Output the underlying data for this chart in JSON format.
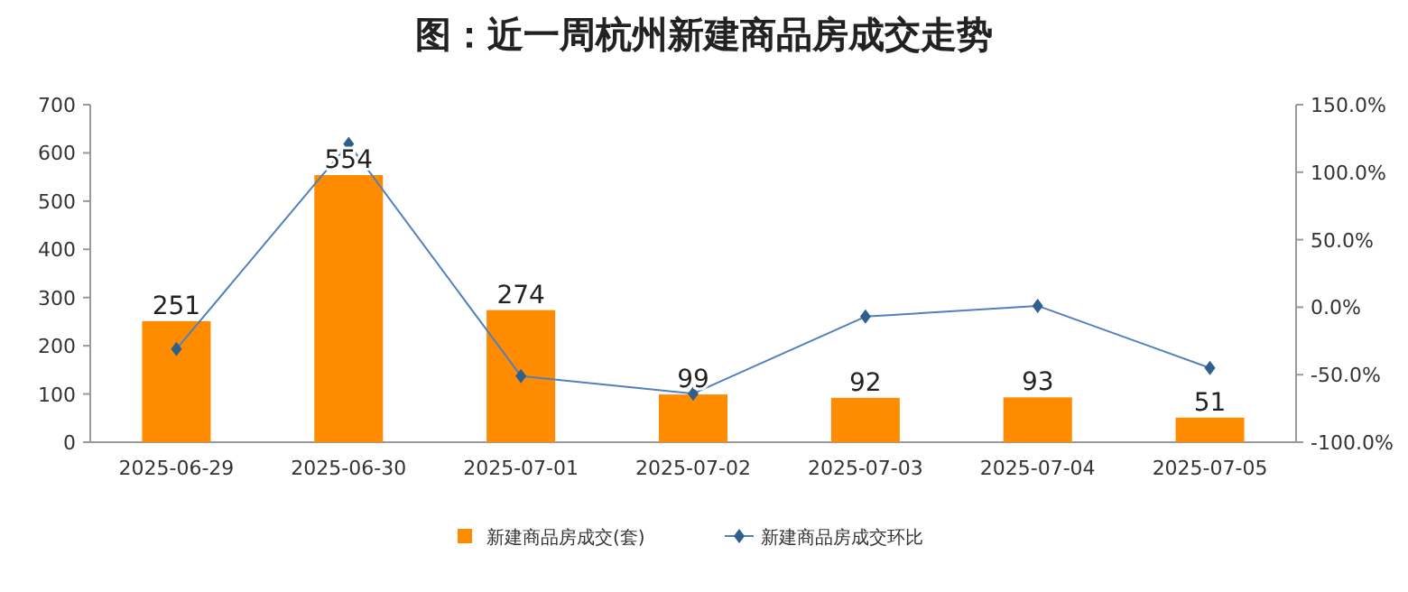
{
  "chart_data": {
    "type": "bar",
    "title": "图：近一周杭州新建商品房成交走势",
    "categories": [
      "2025-06-29",
      "2025-06-30",
      "2025-07-01",
      "2025-07-02",
      "2025-07-03",
      "2025-07-04",
      "2025-07-05"
    ],
    "series": [
      {
        "name": "新建商品房成交(套)",
        "color": "#ff8c00",
        "values": [
          251,
          554,
          274,
          99,
          92,
          93,
          51
        ],
        "value_labels": [
          "251",
          "554",
          "274",
          "99",
          "92",
          "93",
          "51"
        ]
      },
      {
        "name": "新建商品房成交环比",
        "type": "line",
        "axis": "y2",
        "color": "#4f81bd",
        "marker": "diamond",
        "values": [
          -31,
          121,
          -51,
          -64,
          -7,
          1,
          -45
        ]
      }
    ],
    "ylim": [
      0,
      700
    ],
    "yticks": [
      0,
      100,
      200,
      300,
      400,
      500,
      600,
      700
    ],
    "y2lim": [
      -100,
      150
    ],
    "y2ticks": [
      {
        "value": -100,
        "label": "-100.0%"
      },
      {
        "value": -50,
        "label": "-50.0%"
      },
      {
        "value": 0,
        "label": "0.0%"
      },
      {
        "value": 50,
        "label": "50.0%"
      },
      {
        "value": 100,
        "label": "100.0%"
      },
      {
        "value": 150,
        "label": "150.0%"
      }
    ],
    "grid": false,
    "legend": "bottom"
  }
}
